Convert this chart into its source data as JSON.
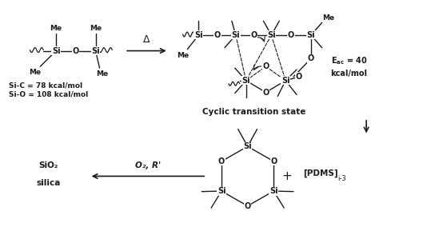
{
  "bg_color": "#ffffff",
  "text_color": "#1a1a1a",
  "line_color": "#1a1a1a",
  "fig_width": 5.49,
  "fig_height": 2.84,
  "dpi": 100,
  "bond_lw": 1.0,
  "dashed_lw": 0.8,
  "arrow_lw": 1.2,
  "si_fs": 7,
  "o_fs": 7,
  "me_fs": 6.5,
  "label_fs": 6.5,
  "eac_text": "E",
  "eac_sub": "ac",
  "eac_val": " = 40\nkcal/mol",
  "cyclic_label": "Cyclic transition state",
  "sic_label": "Si-C = 78 kcal/mol",
  "sio_label": "Si-O = 108 kcal/mol",
  "o2_label": "O₂, R'",
  "sio2_label": "SiO₂",
  "silica_label": "silica",
  "pdms_label": "[PDMS]",
  "pdms_sub": "i-3",
  "delta_label": "Δ",
  "plus_label": "+"
}
